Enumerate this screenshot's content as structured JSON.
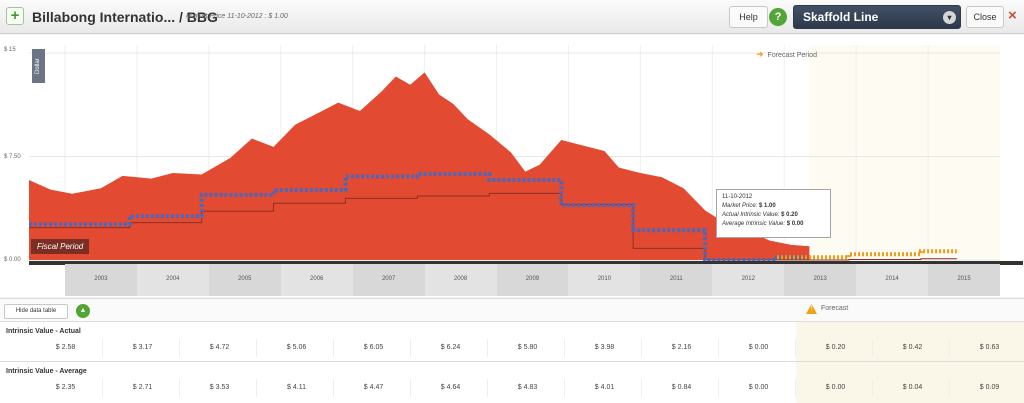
{
  "header": {
    "add_icon": "plus-icon",
    "title": "Billabong Internatio... / BBG",
    "subtitle": "Market Price 11-10-2012 : $ 1.00",
    "help_label": "Help",
    "help_icon": "question-icon",
    "view_select": "Skaffold Line",
    "close_label": "Close",
    "close_icon": "close-icon"
  },
  "chart": {
    "y_axis_unit": "Dollar",
    "fiscal_label": "Fiscal Period",
    "forecast_legend": "Forecast Period",
    "tooltip": {
      "date": "11-10-2012",
      "market_price_label": "Market Price:",
      "market_price": "$ 1.00",
      "actual_label": "Actual Intrinsic Value:",
      "actual": "$ 0.20",
      "average_label": "Average Intrinsic Value:",
      "average": "$ 0.00"
    },
    "years": [
      "2003",
      "2004",
      "2005",
      "2006",
      "2007",
      "2008",
      "2009",
      "2010",
      "2011",
      "2012",
      "2013",
      "2014",
      "2015"
    ]
  },
  "chart_data": {
    "type": "area",
    "x_unit": "year",
    "y_ticks": [
      "$ 15",
      "$ 7.50",
      "$ 0.00"
    ],
    "ylim": [
      0,
      15
    ],
    "xlim": [
      2002.0,
      2015.5
    ],
    "market_price": {
      "name": "Market Price",
      "color": "#e24a32",
      "points": [
        [
          2002.0,
          5.8
        ],
        [
          2002.3,
          5.1
        ],
        [
          2002.6,
          4.8
        ],
        [
          2003.0,
          5.2
        ],
        [
          2003.3,
          6.1
        ],
        [
          2003.7,
          5.9
        ],
        [
          2004.0,
          6.3
        ],
        [
          2004.4,
          6.2
        ],
        [
          2004.8,
          7.4
        ],
        [
          2005.1,
          8.8
        ],
        [
          2005.4,
          8.2
        ],
        [
          2005.7,
          9.8
        ],
        [
          2006.0,
          10.6
        ],
        [
          2006.3,
          11.4
        ],
        [
          2006.6,
          10.8
        ],
        [
          2006.9,
          12.2
        ],
        [
          2007.1,
          13.3
        ],
        [
          2007.3,
          12.7
        ],
        [
          2007.5,
          13.6
        ],
        [
          2007.7,
          12.0
        ],
        [
          2007.9,
          11.3
        ],
        [
          2008.1,
          10.2
        ],
        [
          2008.4,
          9.1
        ],
        [
          2008.7,
          7.8
        ],
        [
          2008.9,
          6.4
        ],
        [
          2009.1,
          6.9
        ],
        [
          2009.4,
          8.7
        ],
        [
          2009.7,
          8.3
        ],
        [
          2010.0,
          7.9
        ],
        [
          2010.2,
          6.7
        ],
        [
          2010.5,
          6.3
        ],
        [
          2010.8,
          6.0
        ],
        [
          2011.1,
          5.2
        ],
        [
          2011.4,
          3.6
        ],
        [
          2011.7,
          2.6
        ],
        [
          2012.0,
          2.1
        ],
        [
          2012.3,
          1.4
        ],
        [
          2012.6,
          1.1
        ],
        [
          2012.85,
          1.0
        ]
      ]
    },
    "intrinsic_actual": {
      "name": "Intrinsic Value - Actual",
      "color": "#5066b8",
      "steps": [
        [
          2002.0,
          2.58
        ],
        [
          2003.4,
          3.17
        ],
        [
          2004.4,
          4.72
        ],
        [
          2005.4,
          5.06
        ],
        [
          2006.4,
          6.05
        ],
        [
          2007.4,
          6.24
        ],
        [
          2008.4,
          5.8
        ],
        [
          2009.4,
          3.98
        ],
        [
          2010.4,
          2.16
        ],
        [
          2011.4,
          0.0
        ],
        [
          2012.4,
          0.2
        ],
        [
          2013.4,
          0.42
        ],
        [
          2014.4,
          0.63
        ]
      ]
    },
    "intrinsic_average": {
      "name": "Intrinsic Value - Average",
      "color": "#8f2f24",
      "steps": [
        [
          2002.0,
          2.35
        ],
        [
          2003.4,
          2.71
        ],
        [
          2004.4,
          3.53
        ],
        [
          2005.4,
          4.11
        ],
        [
          2006.4,
          4.47
        ],
        [
          2007.4,
          4.64
        ],
        [
          2008.4,
          4.83
        ],
        [
          2009.4,
          4.01
        ],
        [
          2010.4,
          0.84
        ],
        [
          2011.4,
          0.0
        ],
        [
          2012.4,
          0.0
        ],
        [
          2013.4,
          0.04
        ],
        [
          2014.4,
          0.09
        ]
      ]
    },
    "forecast_start": 2012.85
  },
  "table": {
    "hide_label": "Hide data table",
    "hide_icon": "collapse-icon",
    "forecast_label": "Forecast",
    "forecast_icon": "warning-icon",
    "rows": [
      {
        "title": "Intrinsic Value - Actual",
        "values": [
          "$ 2.58",
          "$ 3.17",
          "$ 4.72",
          "$ 5.06",
          "$ 6.05",
          "$ 6.24",
          "$ 5.80",
          "$ 3.98",
          "$ 2.16",
          "$ 0.00",
          "$ 0.20",
          "$ 0.42",
          "$ 0.63"
        ]
      },
      {
        "title": "Intrinsic Value - Average",
        "values": [
          "$ 2.35",
          "$ 2.71",
          "$ 3.53",
          "$ 4.11",
          "$ 4.47",
          "$ 4.64",
          "$ 4.83",
          "$ 4.01",
          "$ 0.84",
          "$ 0.00",
          "$ 0.00",
          "$ 0.04",
          "$ 0.09"
        ]
      }
    ]
  }
}
